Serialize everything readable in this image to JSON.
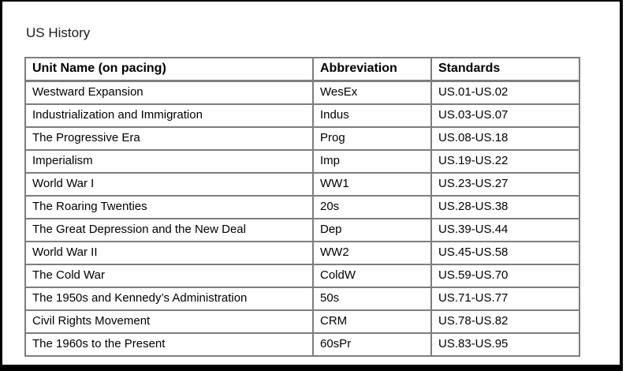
{
  "page": {
    "title": "US History"
  },
  "table": {
    "columns": [
      {
        "label": "Unit Name (on pacing)"
      },
      {
        "label": "Abbreviation"
      },
      {
        "label": "Standards"
      }
    ],
    "rows": [
      {
        "unit": "Westward Expansion",
        "abbr": "WesEx",
        "standards": "US.01-US.02"
      },
      {
        "unit": "Industrialization and Immigration",
        "abbr": "Indus",
        "standards": "US.03-US.07"
      },
      {
        "unit": "The Progressive Era",
        "abbr": "Prog",
        "standards": "US.08-US.18"
      },
      {
        "unit": "Imperialism",
        "abbr": "Imp",
        "standards": "US.19-US.22"
      },
      {
        "unit": "World War I",
        "abbr": "WW1",
        "standards": "US.23-US.27"
      },
      {
        "unit": "The Roaring Twenties",
        "abbr": "20s",
        "standards": "US.28-US.38"
      },
      {
        "unit": "The Great Depression and the New Deal",
        "abbr": "Dep",
        "standards": "US.39-US.44"
      },
      {
        "unit": "World War II",
        "abbr": "WW2",
        "standards": "US.45-US.58"
      },
      {
        "unit": "The Cold War",
        "abbr": "ColdW",
        "standards": "US.59-US.70"
      },
      {
        "unit": "The 1950s and Kennedy’s Administration",
        "abbr": "50s",
        "standards": "US.71-US.77"
      },
      {
        "unit": "Civil Rights Movement",
        "abbr": "CRM",
        "standards": "US.78-US.82"
      },
      {
        "unit": "The 1960s to the Present",
        "abbr": "60sPr",
        "standards": "US.83-US.95"
      }
    ]
  },
  "colors": {
    "background": "#ffffff",
    "frame_border": "#000000",
    "table_border": "#7d7d7d",
    "text": "#000000"
  }
}
